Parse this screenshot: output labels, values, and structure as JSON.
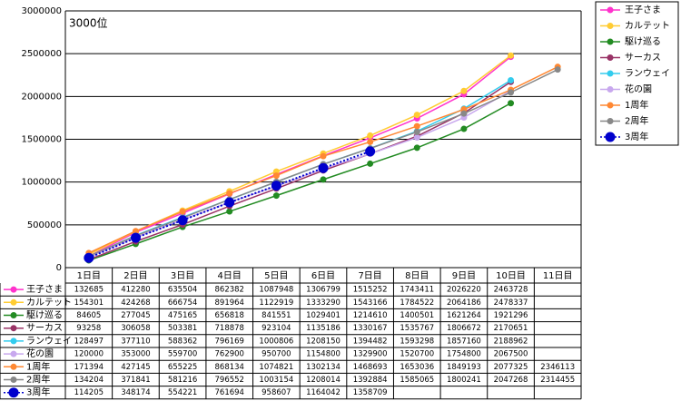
{
  "chart_data": {
    "type": "line",
    "title": "3000位",
    "categories": [
      "1日目",
      "2日目",
      "3日目",
      "4日目",
      "5日目",
      "6日目",
      "7日目",
      "8日目",
      "9日目",
      "10日目",
      "11日目"
    ],
    "ylim": [
      0,
      3000000
    ],
    "yticks": [
      0,
      500000,
      1000000,
      1500000,
      2000000,
      2500000,
      3000000
    ],
    "grid": true,
    "legend": "right",
    "series": [
      {
        "name": "王子さま",
        "color": "#ff33cc",
        "values": [
          132685,
          412280,
          635504,
          862382,
          1087948,
          1306799,
          1515252,
          1743411,
          2026220,
          2463728,
          null
        ]
      },
      {
        "name": "カルテット",
        "color": "#ffcc33",
        "values": [
          154301,
          424268,
          666754,
          891964,
          1122919,
          1333290,
          1543166,
          1784522,
          2064186,
          2478337,
          null
        ]
      },
      {
        "name": "駆け巡る",
        "color": "#228b22",
        "values": [
          84605,
          277045,
          475165,
          656818,
          841551,
          1029401,
          1214610,
          1400501,
          1621264,
          1921296,
          null
        ]
      },
      {
        "name": "サーカス",
        "color": "#993366",
        "values": [
          93258,
          306058,
          503381,
          718878,
          923104,
          1135186,
          1330167,
          1535767,
          1806672,
          2170651,
          null
        ]
      },
      {
        "name": "ランウェイ",
        "color": "#33ccee",
        "values": [
          128497,
          377110,
          588362,
          796169,
          1000806,
          1208150,
          1394482,
          1593298,
          1857160,
          2188962,
          null
        ]
      },
      {
        "name": "花の園",
        "color": "#c8a8ee",
        "values": [
          120000,
          353000,
          559700,
          762900,
          950700,
          1154800,
          1329900,
          1520700,
          1754800,
          2067500,
          null
        ]
      },
      {
        "name": "1周年",
        "color": "#ff8833",
        "values": [
          171394,
          427145,
          655225,
          868134,
          1074821,
          1302134,
          1468693,
          1653036,
          1849193,
          2077325,
          2346113
        ]
      },
      {
        "name": "2周年",
        "color": "#888888",
        "values": [
          134204,
          371841,
          581216,
          796552,
          1003154,
          1208014,
          1392884,
          1585065,
          1800241,
          2047268,
          2314455
        ]
      },
      {
        "name": "3周年",
        "color": "#0000cc",
        "dashed": true,
        "values": [
          114205,
          348174,
          554221,
          761694,
          958607,
          1164042,
          1358709,
          null,
          null,
          null,
          null
        ]
      }
    ]
  }
}
